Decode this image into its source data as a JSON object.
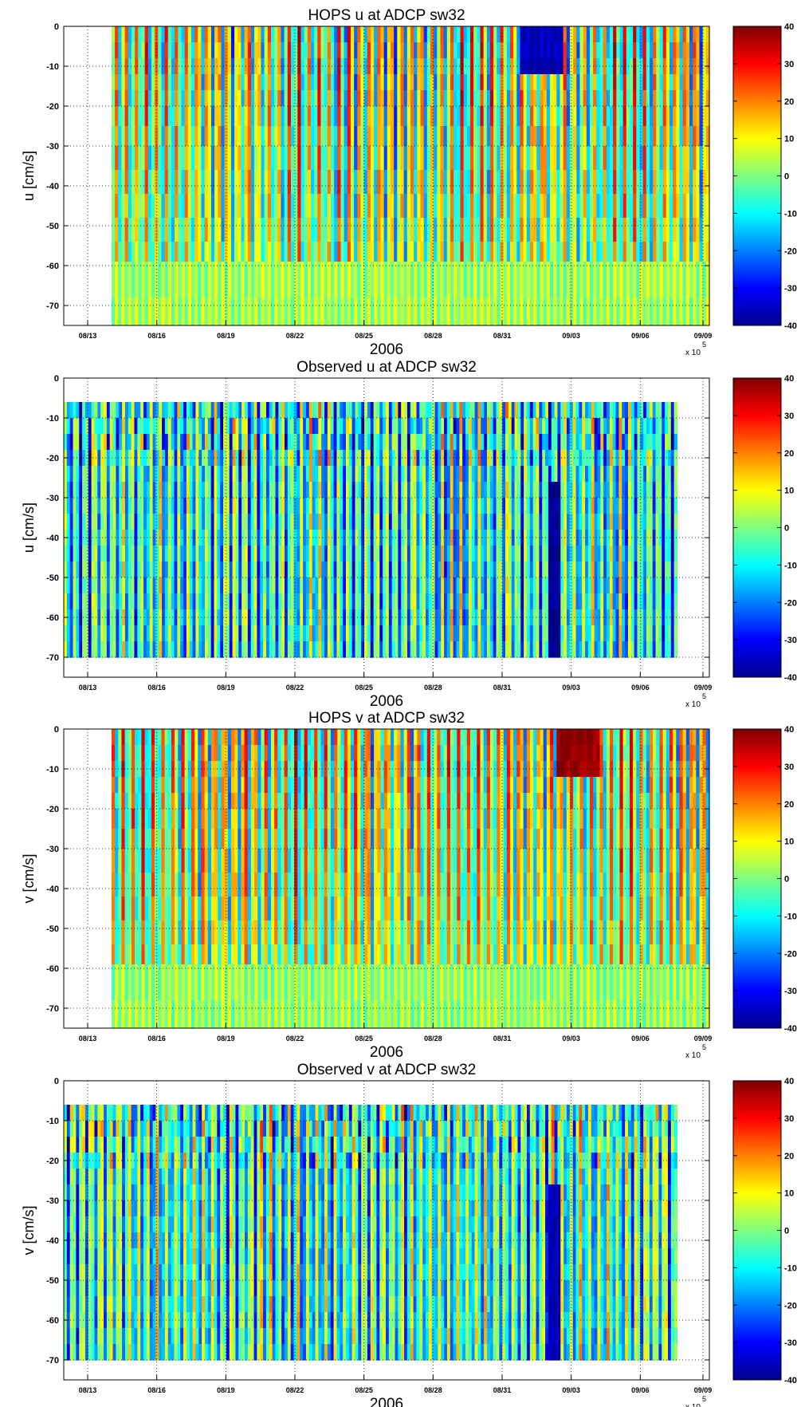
{
  "figure": {
    "xlabel": "2006",
    "exponent_label": "x 10",
    "exponent_power": "5",
    "x_tick_labels": [
      "08/13",
      "08/16",
      "08/19",
      "08/22",
      "08/25",
      "08/28",
      "08/31",
      "09/03",
      "09/06",
      "09/09"
    ],
    "colorbar_ticks": [
      "40",
      "30",
      "20",
      "10",
      "0",
      "-10",
      "-20",
      "-30",
      "-40"
    ],
    "colormap": "jet"
  },
  "chart_data": [
    {
      "type": "heatmap",
      "title": "HOPS u at ADCP sw32",
      "ylabel": "u [cm/s]",
      "xlabel": "2006",
      "x_tick_labels": [
        "08/13",
        "08/16",
        "08/19",
        "08/22",
        "08/25",
        "08/28",
        "08/31",
        "09/03",
        "09/06",
        "09/09"
      ],
      "y_ticks": [
        0,
        -10,
        -20,
        -30,
        -40,
        -50,
        -60,
        -70
      ],
      "ylim": [
        -75,
        0
      ],
      "data_depth_range": [
        -75,
        0
      ],
      "data_start_fraction": 0.074,
      "data_end_fraction": 1.0,
      "clim": [
        -40,
        40
      ],
      "colorbar_ticks": [
        40,
        30,
        20,
        10,
        0,
        -10,
        -20,
        -30,
        -40
      ],
      "surface_event": {
        "x_fraction": 0.72,
        "value": -35
      }
    },
    {
      "type": "heatmap",
      "title": "Observed u at ADCP sw32",
      "ylabel": "u [cm/s]",
      "xlabel": "2006",
      "x_tick_labels": [
        "08/13",
        "08/16",
        "08/19",
        "08/22",
        "08/25",
        "08/28",
        "08/31",
        "09/03",
        "09/06",
        "09/09"
      ],
      "y_ticks": [
        0,
        -10,
        -20,
        -30,
        -40,
        -50,
        -60,
        -70
      ],
      "ylim": [
        -75,
        0
      ],
      "data_depth_range": [
        -70,
        -6
      ],
      "data_start_fraction": 0.0,
      "data_end_fraction": 0.95,
      "clim": [
        -40,
        40
      ],
      "colorbar_ticks": [
        40,
        30,
        20,
        10,
        0,
        -10,
        -20,
        -30,
        -40
      ],
      "deep_event": {
        "x_fraction": 0.8,
        "value": -38
      }
    },
    {
      "type": "heatmap",
      "title": "HOPS v at ADCP sw32",
      "ylabel": "v [cm/s]",
      "xlabel": "2006",
      "x_tick_labels": [
        "08/13",
        "08/16",
        "08/19",
        "08/22",
        "08/25",
        "08/28",
        "08/31",
        "09/03",
        "09/06",
        "09/09"
      ],
      "y_ticks": [
        0,
        -10,
        -20,
        -30,
        -40,
        -50,
        -60,
        -70
      ],
      "ylim": [
        -75,
        0
      ],
      "data_depth_range": [
        -75,
        0
      ],
      "data_start_fraction": 0.074,
      "data_end_fraction": 1.0,
      "clim": [
        -40,
        40
      ],
      "colorbar_ticks": [
        40,
        30,
        20,
        10,
        0,
        -10,
        -20,
        -30,
        -40
      ],
      "surface_event": {
        "x_fraction": 0.78,
        "value": 38
      }
    },
    {
      "type": "heatmap",
      "title": "Observed v at ADCP sw32",
      "ylabel": "v [cm/s]",
      "xlabel": "2006",
      "x_tick_labels": [
        "08/13",
        "08/16",
        "08/19",
        "08/22",
        "08/25",
        "08/28",
        "08/31",
        "09/03",
        "09/06",
        "09/09"
      ],
      "y_ticks": [
        0,
        -10,
        -20,
        -30,
        -40,
        -50,
        -60,
        -70
      ],
      "ylim": [
        -75,
        0
      ],
      "data_depth_range": [
        -70,
        -6
      ],
      "data_start_fraction": 0.0,
      "data_end_fraction": 0.95,
      "clim": [
        -40,
        40
      ],
      "colorbar_ticks": [
        40,
        30,
        20,
        10,
        0,
        -10,
        -20,
        -30,
        -40
      ],
      "deep_event": {
        "x_fraction": 0.8,
        "value": -36
      }
    }
  ]
}
